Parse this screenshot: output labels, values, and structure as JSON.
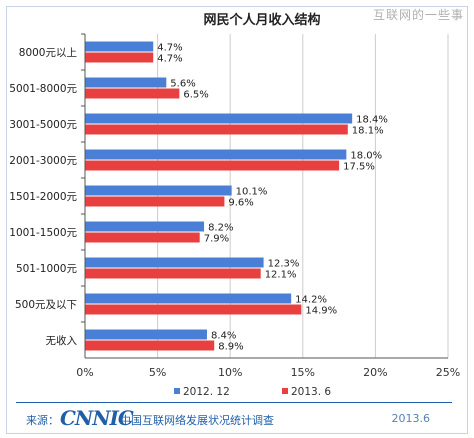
{
  "watermark": "互联网的一些事",
  "footer": {
    "source_label": "来源：",
    "logo_text": "CNNIC",
    "org": "中国互联网络发展状况统计调查",
    "date": "2013.6"
  },
  "colors": {
    "series1": "#4a7fd6",
    "series2": "#e84040",
    "grid": "#cccccc",
    "axis": "#555555"
  },
  "chart_data": {
    "type": "bar",
    "orientation": "horizontal",
    "title": "网民个人月收入结构",
    "categories": [
      "8000元以上",
      "5001-8000元",
      "3001-5000元",
      "2001-3000元",
      "1501-2000元",
      "1001-1500元",
      "501-1000元",
      "500元及以下",
      "无收入"
    ],
    "series": [
      {
        "name": "2012. 12",
        "values": [
          4.7,
          5.6,
          18.4,
          18.0,
          10.1,
          8.2,
          12.3,
          14.2,
          8.4
        ],
        "labels": [
          "4.7%",
          "5.6%",
          "18.4%",
          "18.0%",
          "10.1%",
          "8.2%",
          "12.3%",
          "14.2%",
          "8.4%"
        ]
      },
      {
        "name": "2013. 6",
        "values": [
          4.7,
          6.5,
          18.1,
          17.5,
          9.6,
          7.9,
          12.1,
          14.9,
          8.9
        ],
        "labels": [
          "4.7%",
          "6.5%",
          "18.1%",
          "17.5%",
          "9.6%",
          "7.9%",
          "12.1%",
          "14.9%",
          "8.9%"
        ]
      }
    ],
    "xlim": [
      0,
      25
    ],
    "xticks": [
      0,
      5,
      10,
      15,
      20,
      25
    ],
    "xtick_labels": [
      "0%",
      "5%",
      "10%",
      "15%",
      "20%",
      "25%"
    ],
    "grid": true,
    "legend": "bottom"
  }
}
